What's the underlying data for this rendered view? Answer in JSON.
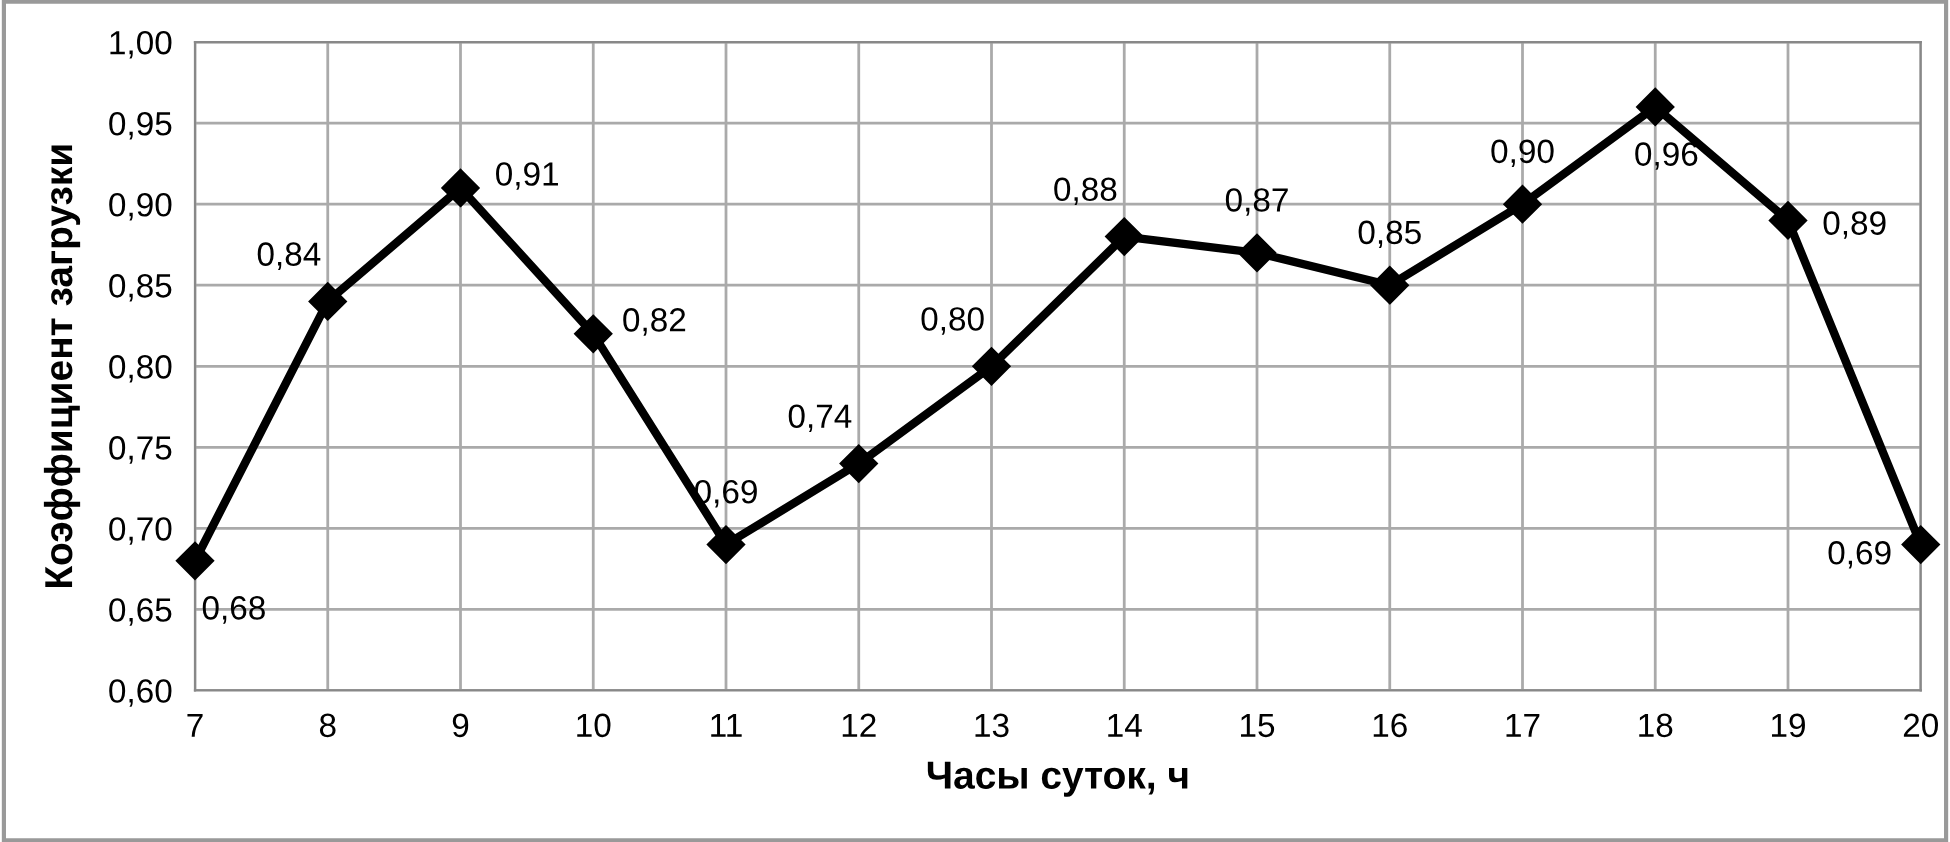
{
  "chart_data": {
    "type": "line",
    "xlabel": "Часы суток, ч",
    "ylabel": "Коэффициент загрузки",
    "categories": [
      "7",
      "8",
      "9",
      "10",
      "11",
      "12",
      "13",
      "14",
      "15",
      "16",
      "17",
      "18",
      "19",
      "20"
    ],
    "values": [
      0.68,
      0.84,
      0.91,
      0.82,
      0.69,
      0.74,
      0.8,
      0.88,
      0.87,
      0.85,
      0.9,
      0.96,
      0.89,
      0.69
    ],
    "value_labels": [
      "0,68",
      "0,84",
      "0,91",
      "0,82",
      "0,69",
      "0,74",
      "0,80",
      "0,88",
      "0,87",
      "0,85",
      "0,90",
      "0,96",
      "0,89",
      "0,69"
    ],
    "color": "#000000",
    "marker": "diamond",
    "line_style": "solid",
    "grid": true,
    "ylim": [
      0.6,
      1.0
    ],
    "yticks": [
      {
        "value": 0.6,
        "label": "0,60"
      },
      {
        "value": 0.65,
        "label": "0,65"
      },
      {
        "value": 0.7,
        "label": "0,70"
      },
      {
        "value": 0.75,
        "label": "0,75"
      },
      {
        "value": 0.8,
        "label": "0,80"
      },
      {
        "value": 0.85,
        "label": "0,85"
      },
      {
        "value": 0.9,
        "label": "0,90"
      },
      {
        "value": 0.95,
        "label": "0,95"
      },
      {
        "value": 1.0,
        "label": "1,00"
      }
    ]
  }
}
